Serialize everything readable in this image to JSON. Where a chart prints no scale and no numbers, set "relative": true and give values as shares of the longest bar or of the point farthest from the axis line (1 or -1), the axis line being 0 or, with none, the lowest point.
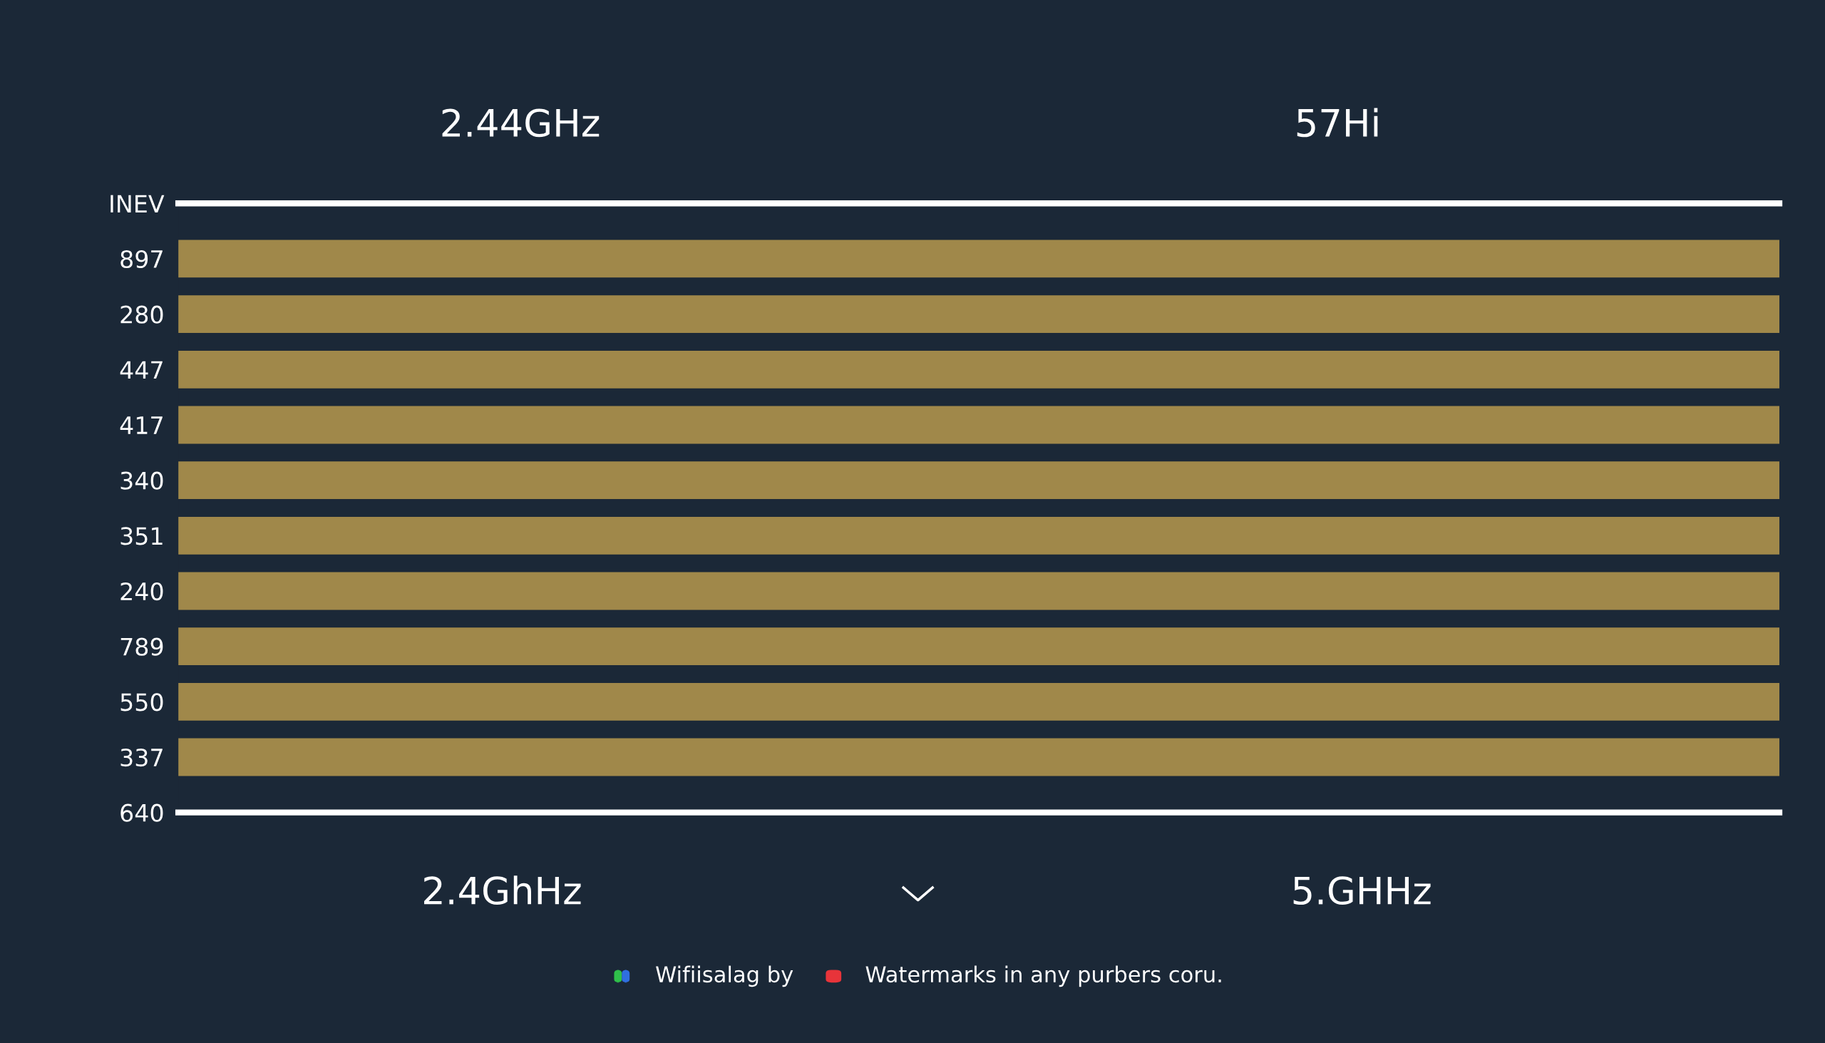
{
  "chart_data": {
    "type": "bar",
    "orientation": "horizontal",
    "relative": true,
    "categories": [
      "INEV",
      "897",
      "280",
      "447",
      "417",
      "340",
      "351",
      "240",
      "789",
      "550",
      "337",
      "640"
    ],
    "values": [
      null,
      1,
      1,
      1,
      1,
      1,
      1,
      1,
      1,
      1,
      1,
      null
    ],
    "color": "#a0884a",
    "annotations": [
      "2.44GHz",
      "57Hi",
      "2.4GhHz",
      "5.GHHz",
      "Wifiisalag by",
      "Watermarks in any purbers coru."
    ],
    "grid": false,
    "legend": false
  }
}
